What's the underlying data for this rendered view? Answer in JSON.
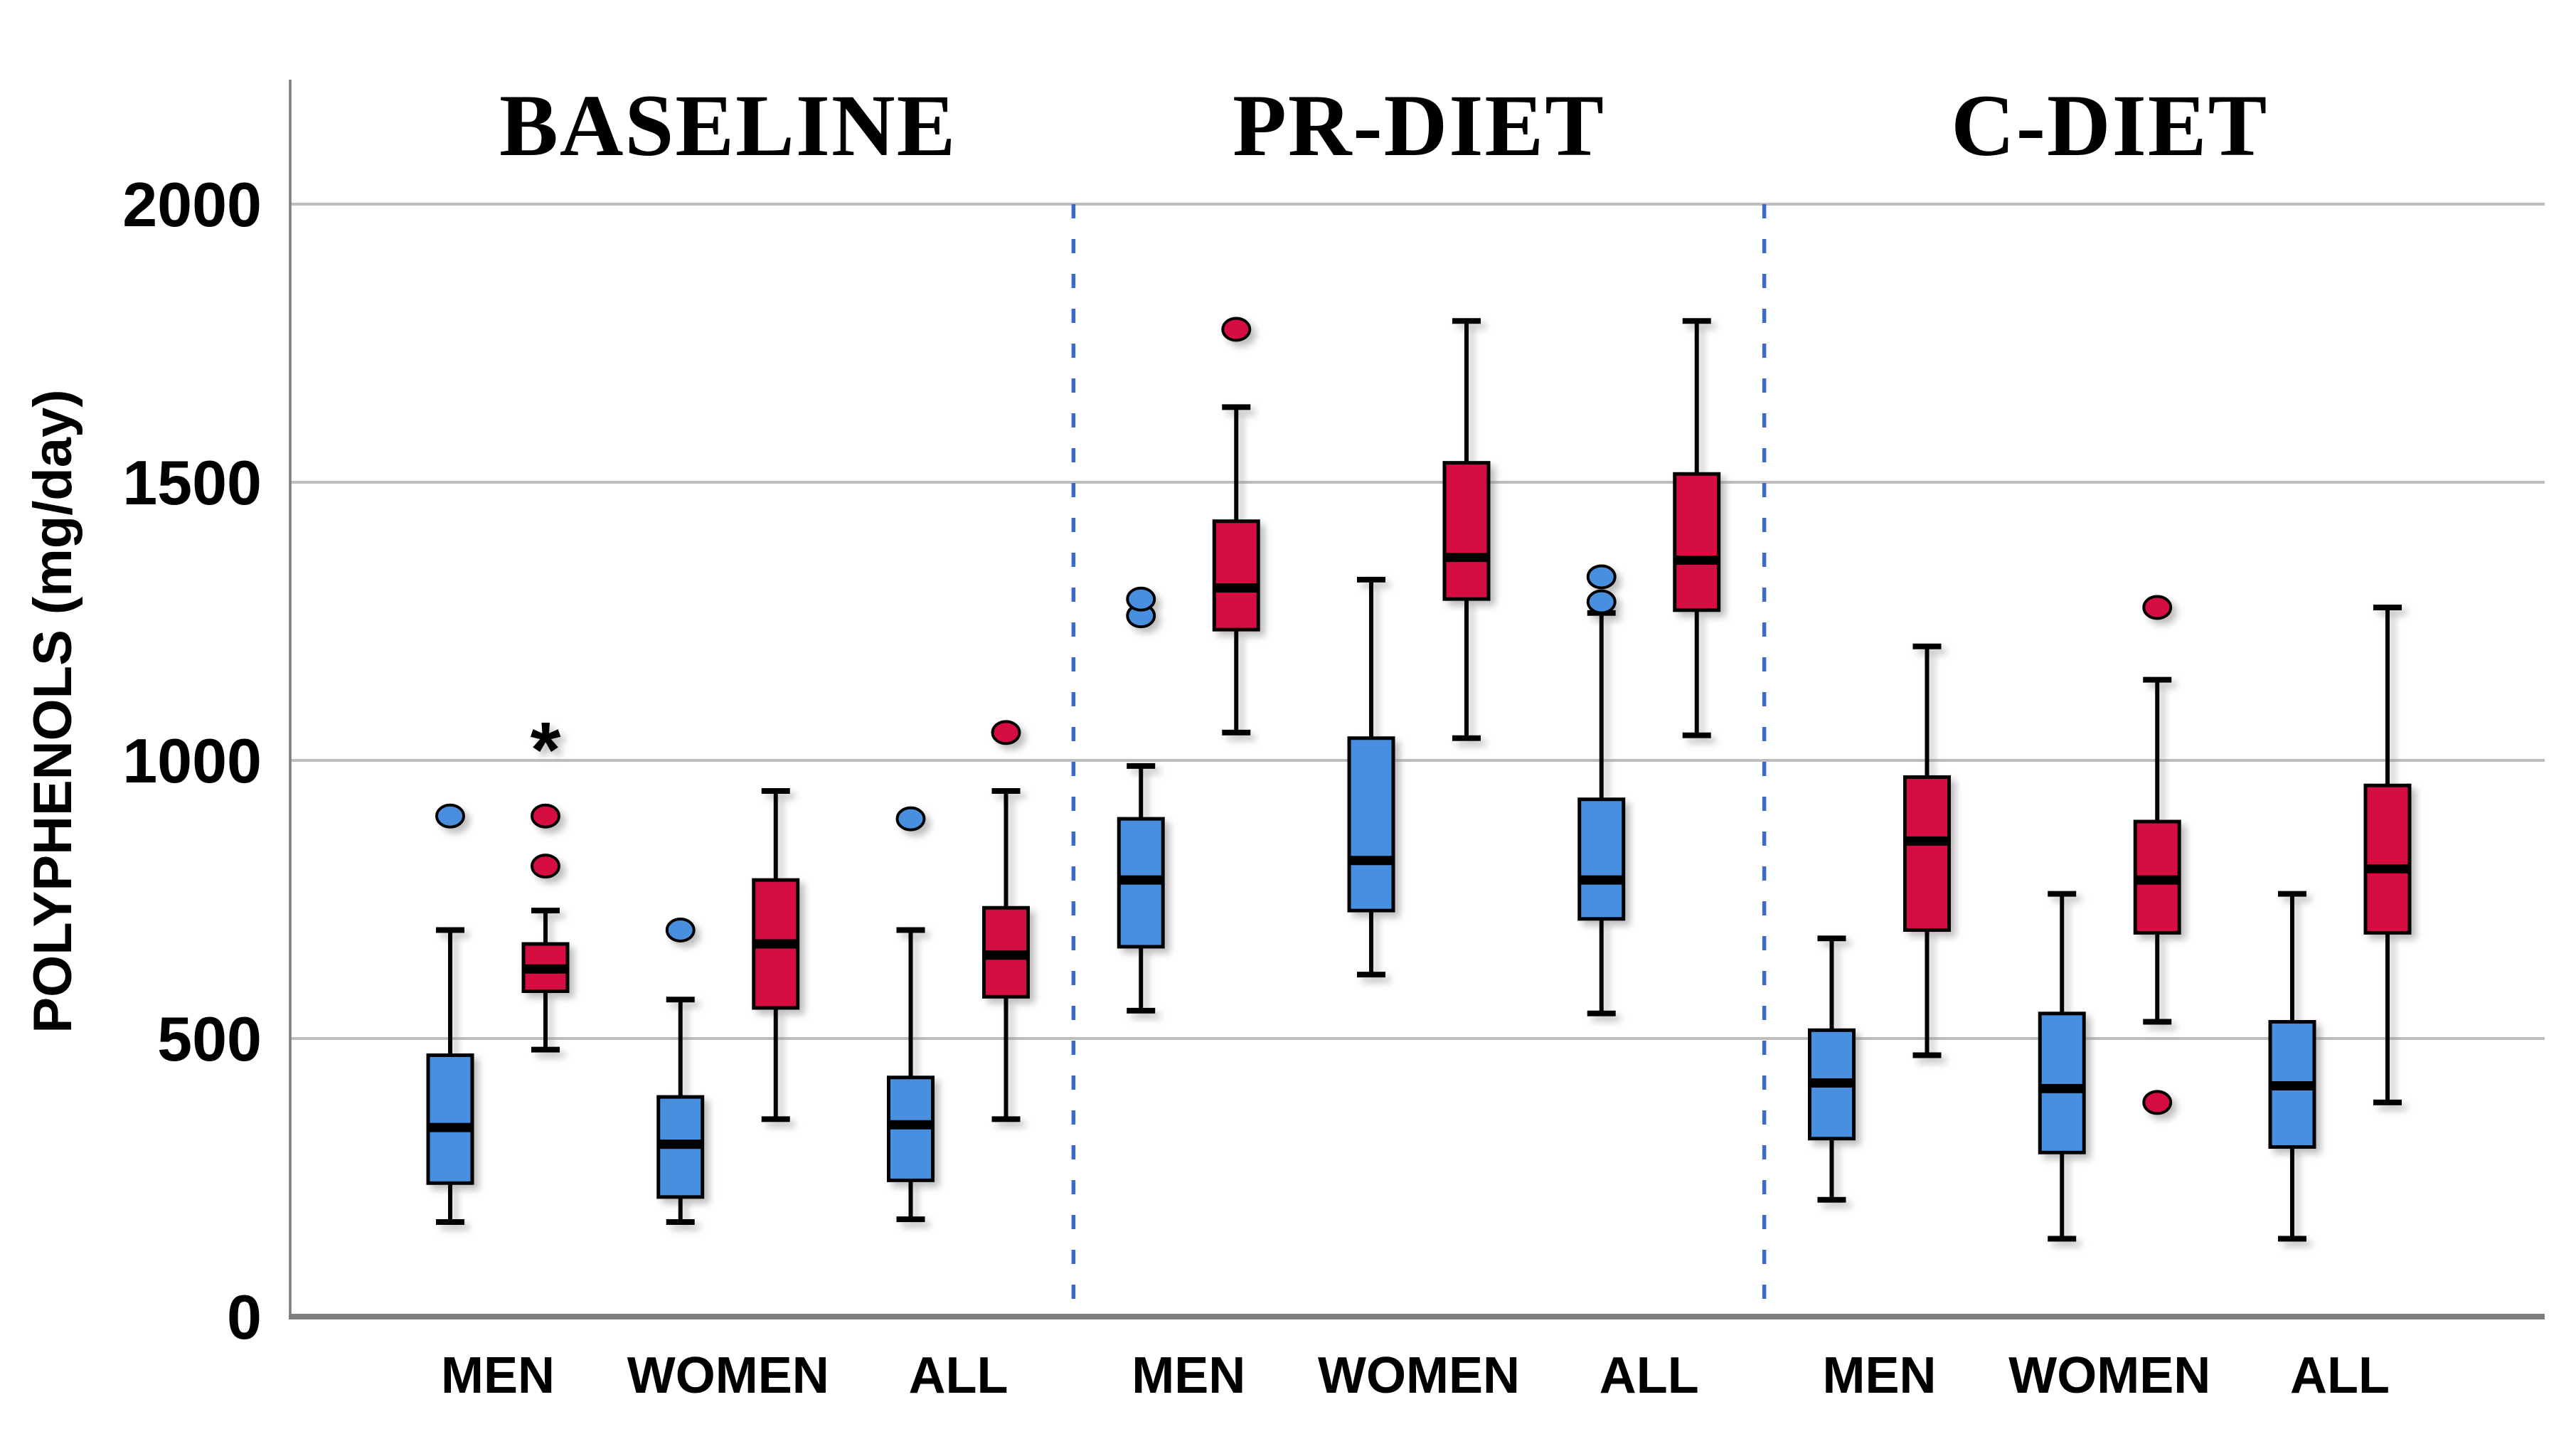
{
  "figure": {
    "background": "#ffffff"
  },
  "chart_data": {
    "type": "boxplot",
    "title": "",
    "xlabel": "",
    "ylabel": "POLYPHENOLS (mg/day)",
    "ylim": [
      0,
      2225
    ],
    "yticks": [
      0,
      500,
      1000,
      1500,
      2000
    ],
    "grid": true,
    "legend": false,
    "panels": [
      {
        "label": "BASELINE"
      },
      {
        "label": "PR-DIET"
      },
      {
        "label": "C-DIET"
      }
    ],
    "categories": [
      "MEN",
      "WOMEN",
      "ALL",
      "MEN",
      "WOMEN",
      "ALL",
      "MEN",
      "WOMEN",
      "ALL"
    ],
    "series": [
      {
        "id": "blue",
        "color_key": "blue"
      },
      {
        "id": "red",
        "color_key": "red"
      }
    ],
    "separators_after_group": [
      2,
      5
    ],
    "groups": [
      {
        "panel": "BASELINE",
        "category": "MEN",
        "boxes": [
          {
            "series": "blue",
            "whisker_low": 170,
            "q1": 240,
            "median": 340,
            "q3": 470,
            "whisker_high": 695,
            "outliers": [
              900
            ],
            "extremes": []
          },
          {
            "series": "red",
            "whisker_low": 480,
            "q1": 585,
            "median": 625,
            "q3": 670,
            "whisker_high": 730,
            "outliers": [
              810,
              900
            ],
            "extremes": [
              1050
            ]
          }
        ]
      },
      {
        "panel": "BASELINE",
        "category": "WOMEN",
        "boxes": [
          {
            "series": "blue",
            "whisker_low": 170,
            "q1": 215,
            "median": 310,
            "q3": 395,
            "whisker_high": 570,
            "outliers": [
              695
            ],
            "extremes": []
          },
          {
            "series": "red",
            "whisker_low": 355,
            "q1": 555,
            "median": 670,
            "q3": 785,
            "whisker_high": 945,
            "outliers": [],
            "extremes": []
          }
        ]
      },
      {
        "panel": "BASELINE",
        "category": "ALL",
        "boxes": [
          {
            "series": "blue",
            "whisker_low": 175,
            "q1": 245,
            "median": 345,
            "q3": 430,
            "whisker_high": 695,
            "outliers": [
              895
            ],
            "extremes": []
          },
          {
            "series": "red",
            "whisker_low": 355,
            "q1": 575,
            "median": 650,
            "q3": 735,
            "whisker_high": 945,
            "outliers": [
              1050
            ],
            "extremes": []
          }
        ]
      },
      {
        "panel": "PR-DIET",
        "category": "MEN",
        "boxes": [
          {
            "series": "blue",
            "whisker_low": 550,
            "q1": 665,
            "median": 785,
            "q3": 895,
            "whisker_high": 990,
            "outliers": [
              1260,
              1290
            ],
            "extremes": []
          },
          {
            "series": "red",
            "whisker_low": 1050,
            "q1": 1235,
            "median": 1310,
            "q3": 1430,
            "whisker_high": 1635,
            "outliers": [
              1775
            ],
            "extremes": []
          }
        ]
      },
      {
        "panel": "PR-DIET",
        "category": "WOMEN",
        "boxes": [
          {
            "series": "blue",
            "whisker_low": 615,
            "q1": 730,
            "median": 820,
            "q3": 1040,
            "whisker_high": 1325,
            "outliers": [],
            "extremes": []
          },
          {
            "series": "red",
            "whisker_low": 1040,
            "q1": 1290,
            "median": 1365,
            "q3": 1535,
            "whisker_high": 1790,
            "outliers": [],
            "extremes": []
          }
        ]
      },
      {
        "panel": "PR-DIET",
        "category": "ALL",
        "boxes": [
          {
            "series": "blue",
            "whisker_low": 545,
            "q1": 715,
            "median": 785,
            "q3": 930,
            "whisker_high": 1265,
            "outliers": [
              1285,
              1330
            ],
            "extremes": []
          },
          {
            "series": "red",
            "whisker_low": 1045,
            "q1": 1270,
            "median": 1360,
            "q3": 1515,
            "whisker_high": 1790,
            "outliers": [],
            "extremes": []
          }
        ]
      },
      {
        "panel": "C-DIET",
        "category": "MEN",
        "boxes": [
          {
            "series": "blue",
            "whisker_low": 210,
            "q1": 320,
            "median": 420,
            "q3": 515,
            "whisker_high": 680,
            "outliers": [],
            "extremes": []
          },
          {
            "series": "red",
            "whisker_low": 470,
            "q1": 695,
            "median": 855,
            "q3": 970,
            "whisker_high": 1205,
            "outliers": [],
            "extremes": []
          }
        ]
      },
      {
        "panel": "C-DIET",
        "category": "WOMEN",
        "boxes": [
          {
            "series": "blue",
            "whisker_low": 140,
            "q1": 295,
            "median": 410,
            "q3": 545,
            "whisker_high": 760,
            "outliers": [],
            "extremes": []
          },
          {
            "series": "red",
            "whisker_low": 530,
            "q1": 690,
            "median": 785,
            "q3": 890,
            "whisker_high": 1145,
            "outliers": [
              385,
              1275
            ],
            "extremes": []
          }
        ]
      },
      {
        "panel": "C-DIET",
        "category": "ALL",
        "boxes": [
          {
            "series": "blue",
            "whisker_low": 140,
            "q1": 305,
            "median": 415,
            "q3": 530,
            "whisker_high": 760,
            "outliers": [],
            "extremes": []
          },
          {
            "series": "red",
            "whisker_low": 385,
            "q1": 690,
            "median": 805,
            "q3": 955,
            "whisker_high": 1275,
            "outliers": [],
            "extremes": []
          }
        ]
      }
    ],
    "styles": {
      "blue": "#4A8FE0",
      "red": "#D50C3F",
      "box_stroke": "#000000",
      "median_color": "#000000",
      "extreme_color": "#E8425A",
      "separator_color": "#3C6AC8",
      "gridline_color": "#BDBDBD",
      "axis_color": "#7D7D7D",
      "text_color": "#000000"
    }
  }
}
